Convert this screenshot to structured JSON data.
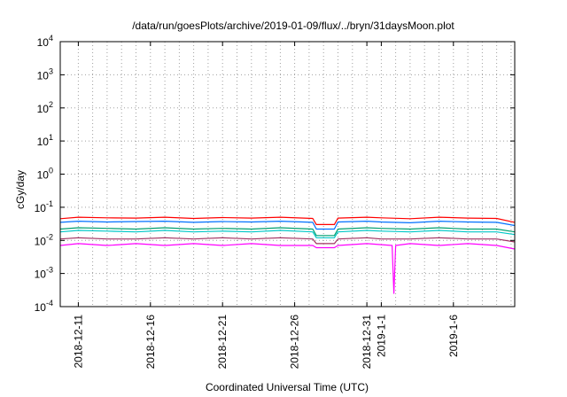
{
  "chart_data": {
    "type": "line",
    "title": "/data/run/goesPlots/archive/2019-01-09/flux/../bryn/31daysMoon.plot",
    "xlabel": "Coordinated Universal Time (UTC)",
    "ylabel": "cGy/day",
    "yscale": "log",
    "ylim": [
      0.0001,
      10000
    ],
    "xlim": [
      "2018-12-09T18:00",
      "2019-01-10T06:00"
    ],
    "grid": true,
    "legend": "none",
    "y_ticks": [
      {
        "value": 0.0001,
        "base": "10",
        "exp": "-4"
      },
      {
        "value": 0.001,
        "base": "10",
        "exp": "-3"
      },
      {
        "value": 0.01,
        "base": "10",
        "exp": "-2"
      },
      {
        "value": 0.1,
        "base": "10",
        "exp": "-1"
      },
      {
        "value": 1,
        "base": "10",
        "exp": "0"
      },
      {
        "value": 10,
        "base": "10",
        "exp": "1"
      },
      {
        "value": 100,
        "base": "10",
        "exp": "2"
      },
      {
        "value": 1000,
        "base": "10",
        "exp": "3"
      },
      {
        "value": 10000,
        "base": "10",
        "exp": "4"
      }
    ],
    "x_ticks": [
      {
        "value": "2018-12-11",
        "label": "2018-12-11"
      },
      {
        "value": "2018-12-16",
        "label": "2018-12-16"
      },
      {
        "value": "2018-12-21",
        "label": "2018-12-21"
      },
      {
        "value": "2018-12-26",
        "label": "2018-12-26"
      },
      {
        "value": "2018-12-31",
        "label": "2018-12-31"
      },
      {
        "value": "2019-01-01",
        "label": "2019-1-1"
      },
      {
        "value": "2019-01-06",
        "label": "2019-1-6"
      }
    ],
    "x_grid": [
      "2018-12-11",
      "2018-12-12",
      "2018-12-13",
      "2018-12-14",
      "2018-12-15",
      "2018-12-16",
      "2018-12-17",
      "2018-12-18",
      "2018-12-19",
      "2018-12-20",
      "2018-12-21",
      "2018-12-22",
      "2018-12-23",
      "2018-12-24",
      "2018-12-25",
      "2018-12-26",
      "2018-12-27",
      "2018-12-28",
      "2018-12-29",
      "2018-12-30",
      "2018-12-31",
      "2019-01-01",
      "2019-01-02",
      "2019-01-03",
      "2019-01-04",
      "2019-01-05",
      "2019-01-06",
      "2019-01-07",
      "2019-01-08",
      "2019-01-09",
      "2019-01-10"
    ],
    "series": [
      {
        "color": "#ff0000",
        "x": [
          "2018-12-09T18:00",
          "2018-12-11",
          "2018-12-13",
          "2018-12-15",
          "2018-12-17",
          "2018-12-19",
          "2018-12-21",
          "2018-12-23",
          "2018-12-25",
          "2018-12-27T06:00",
          "2018-12-27T12:00",
          "2018-12-28T18:00",
          "2018-12-29",
          "2018-12-31",
          "2019-01-01",
          "2019-01-03",
          "2019-01-05",
          "2019-01-07",
          "2019-01-09",
          "2019-01-10T06:00"
        ],
        "y": [
          0.045,
          0.05,
          0.048,
          0.047,
          0.05,
          0.046,
          0.049,
          0.047,
          0.05,
          0.046,
          0.03,
          0.03,
          0.047,
          0.05,
          0.048,
          0.045,
          0.05,
          0.047,
          0.046,
          0.035
        ]
      },
      {
        "color": "#0070ff",
        "x": [
          "2018-12-09T18:00",
          "2018-12-11",
          "2018-12-13",
          "2018-12-15",
          "2018-12-17",
          "2018-12-19",
          "2018-12-21",
          "2018-12-23",
          "2018-12-25",
          "2018-12-27T06:00",
          "2018-12-27T12:00",
          "2018-12-28T18:00",
          "2018-12-29",
          "2018-12-31",
          "2019-01-01",
          "2019-01-03",
          "2019-01-05",
          "2019-01-07",
          "2019-01-09",
          "2019-01-10T06:00"
        ],
        "y": [
          0.035,
          0.038,
          0.036,
          0.037,
          0.038,
          0.035,
          0.037,
          0.036,
          0.038,
          0.035,
          0.022,
          0.022,
          0.036,
          0.038,
          0.036,
          0.034,
          0.038,
          0.036,
          0.035,
          0.028
        ]
      },
      {
        "color": "#00a070",
        "x": [
          "2018-12-09T18:00",
          "2018-12-11",
          "2018-12-13",
          "2018-12-15",
          "2018-12-17",
          "2018-12-19",
          "2018-12-21",
          "2018-12-23",
          "2018-12-25",
          "2018-12-27T06:00",
          "2018-12-27T12:00",
          "2018-12-28T18:00",
          "2018-12-29",
          "2018-12-31",
          "2019-01-01",
          "2019-01-03",
          "2019-01-05",
          "2019-01-07",
          "2019-01-09",
          "2019-01-10T06:00"
        ],
        "y": [
          0.022,
          0.024,
          0.023,
          0.022,
          0.024,
          0.022,
          0.023,
          0.022,
          0.024,
          0.022,
          0.014,
          0.014,
          0.022,
          0.024,
          0.023,
          0.022,
          0.024,
          0.022,
          0.022,
          0.018
        ]
      },
      {
        "color": "#00c8c8",
        "x": [
          "2018-12-09T18:00",
          "2018-12-11",
          "2018-12-13",
          "2018-12-15",
          "2018-12-17",
          "2018-12-19",
          "2018-12-21",
          "2018-12-23",
          "2018-12-25",
          "2018-12-27T06:00",
          "2018-12-27T12:00",
          "2018-12-28T18:00",
          "2018-12-29",
          "2018-12-31",
          "2019-01-01",
          "2019-01-03",
          "2019-01-05",
          "2019-01-07",
          "2019-01-09",
          "2019-01-10T06:00"
        ],
        "y": [
          0.018,
          0.02,
          0.019,
          0.018,
          0.02,
          0.018,
          0.019,
          0.018,
          0.02,
          0.018,
          0.012,
          0.012,
          0.018,
          0.02,
          0.019,
          0.018,
          0.02,
          0.018,
          0.018,
          0.015
        ]
      },
      {
        "color": "#a03060",
        "x": [
          "2018-12-09T18:00",
          "2018-12-11",
          "2018-12-13",
          "2018-12-15",
          "2018-12-17",
          "2018-12-19",
          "2018-12-21",
          "2018-12-23",
          "2018-12-25",
          "2018-12-27T06:00",
          "2018-12-27T12:00",
          "2018-12-28T18:00",
          "2018-12-29",
          "2018-12-31",
          "2019-01-01",
          "2019-01-03",
          "2019-01-05",
          "2019-01-07",
          "2019-01-09",
          "2019-01-10T06:00"
        ],
        "y": [
          0.011,
          0.012,
          0.011,
          0.011,
          0.012,
          0.011,
          0.012,
          0.011,
          0.012,
          0.011,
          0.008,
          0.008,
          0.011,
          0.012,
          0.011,
          0.011,
          0.012,
          0.011,
          0.011,
          0.009
        ]
      },
      {
        "color": "#ff00ff",
        "x": [
          "2018-12-09T18:00",
          "2018-12-11",
          "2018-12-13",
          "2018-12-15",
          "2018-12-17",
          "2018-12-19",
          "2018-12-21",
          "2018-12-23",
          "2018-12-25",
          "2018-12-27T06:00",
          "2018-12-27T12:00",
          "2018-12-28T18:00",
          "2018-12-29",
          "2018-12-31",
          "2019-01-01T18:00",
          "2019-01-01T21:00",
          "2019-01-02",
          "2019-01-03",
          "2019-01-05",
          "2019-01-07",
          "2019-01-09",
          "2019-01-10T06:00"
        ],
        "y": [
          0.007,
          0.008,
          0.007,
          0.008,
          0.007,
          0.008,
          0.007,
          0.008,
          0.007,
          0.007,
          0.006,
          0.006,
          0.007,
          0.008,
          0.007,
          0.00025,
          0.007,
          0.008,
          0.007,
          0.008,
          0.007,
          0.0055
        ]
      }
    ]
  }
}
